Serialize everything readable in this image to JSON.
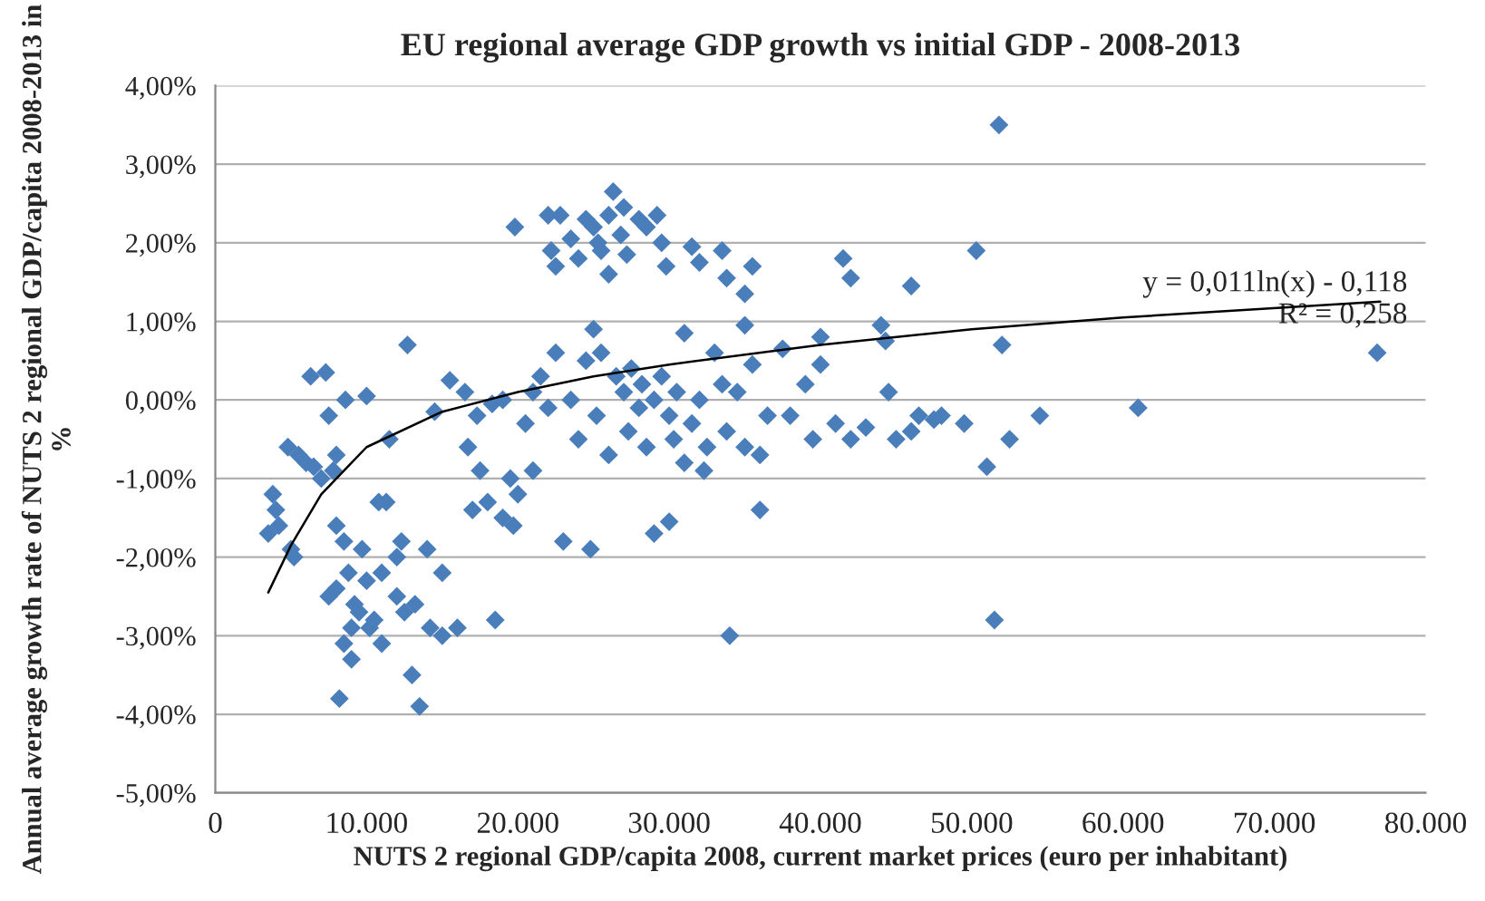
{
  "chart_data": {
    "type": "scatter",
    "title": "EU regional average GDP growth vs initial GDP - 2008-2013",
    "xlabel": "NUTS 2 regional GDP/capita 2008, current market prices (euro per inhabitant)",
    "ylabel": "Annual average growth rate of NUTS 2 regional GDP/capita 2008-2013 in %",
    "annotations": [
      "y = 0,011ln(x) - 0,118",
      "R² = 0,258"
    ],
    "marker": "diamond",
    "grid": "y",
    "xlim": [
      0,
      80000
    ],
    "xticks": [
      {
        "value": 0,
        "label": "0"
      },
      {
        "value": 10000,
        "label": "10.000"
      },
      {
        "value": 20000,
        "label": "20.000"
      },
      {
        "value": 30000,
        "label": "30.000"
      },
      {
        "value": 40000,
        "label": "40.000"
      },
      {
        "value": 50000,
        "label": "50.000"
      },
      {
        "value": 60000,
        "label": "60.000"
      },
      {
        "value": 70000,
        "label": "70.000"
      },
      {
        "value": 80000,
        "label": "80.000"
      }
    ],
    "ylim": [
      -5,
      4
    ],
    "yticks": [
      {
        "value": -5,
        "label": "-5,00%"
      },
      {
        "value": -4,
        "label": "-4,00%"
      },
      {
        "value": -3,
        "label": "-3,00%"
      },
      {
        "value": -2,
        "label": "-2,00%"
      },
      {
        "value": -1,
        "label": "-1,00%"
      },
      {
        "value": 0,
        "label": "0,00%"
      },
      {
        "value": 1,
        "label": "1,00%"
      },
      {
        "value": 2,
        "label": "2,00%"
      },
      {
        "value": 3,
        "label": "3,00%"
      },
      {
        "value": 4,
        "label": "4,00%"
      }
    ],
    "series": [
      {
        "color": "#4a7ebb",
        "x": [
          3500,
          3800,
          4000,
          4200,
          4800,
          5000,
          5200,
          5500,
          6000,
          6300,
          6500,
          7000,
          7300,
          7500,
          7500,
          7800,
          8000,
          8000,
          8000,
          8200,
          8500,
          8500,
          8600,
          8800,
          9000,
          9000,
          9200,
          9500,
          9700,
          10000,
          10000,
          10200,
          10500,
          10800,
          11000,
          11000,
          11300,
          11500,
          12000,
          12000,
          12300,
          12500,
          12700,
          13000,
          13200,
          13500,
          14000,
          14200,
          14500,
          15000,
          15000,
          15500,
          16000,
          16500,
          16700,
          17000,
          17300,
          17500,
          18000,
          18300,
          18500,
          19000,
          19000,
          19500,
          19700,
          20000,
          19800,
          20500,
          21000,
          21000,
          22000,
          22200,
          22500,
          22800,
          23500,
          24000,
          24500,
          25000,
          25300,
          25500,
          26000,
          26000,
          26300,
          26800,
          27000,
          27200,
          28000,
          28500,
          29200,
          29500,
          29800,
          31500,
          32000,
          33500,
          33800,
          35000,
          35500,
          41500,
          42000,
          46000,
          50300,
          51800,
          21500,
          22000,
          22500,
          23000,
          23500,
          24000,
          24500,
          24800,
          25000,
          25200,
          25500,
          26000,
          26500,
          27000,
          27300,
          27500,
          28000,
          28200,
          28500,
          29000,
          29000,
          29500,
          30000,
          30000,
          30300,
          30500,
          31000,
          31000,
          31500,
          32000,
          32300,
          32500,
          33000,
          33500,
          33800,
          34000,
          34500,
          35000,
          35000,
          35500,
          36000,
          36000,
          36500,
          37500,
          38000,
          39000,
          39500,
          40000,
          40000,
          41000,
          42000,
          43000,
          44000,
          44300,
          44500,
          45000,
          46000,
          46500,
          47500,
          48000,
          49500,
          51000,
          51500,
          52000,
          52500,
          54500,
          61000,
          76800
        ],
        "values": [
          -1.7,
          -1.2,
          -1.4,
          -1.6,
          -0.6,
          -1.9,
          -2.0,
          -0.7,
          -0.8,
          0.3,
          -0.85,
          -1.0,
          0.35,
          -0.2,
          -2.5,
          -0.9,
          -1.6,
          -0.7,
          -2.4,
          -3.8,
          -1.8,
          -3.1,
          0.0,
          -2.2,
          -2.9,
          -3.3,
          -2.6,
          -2.7,
          -1.9,
          -2.3,
          0.05,
          -2.9,
          -2.8,
          -1.3,
          -2.2,
          -3.1,
          -1.3,
          -0.5,
          -2.5,
          -2.0,
          -1.8,
          -2.7,
          0.7,
          -3.5,
          -2.6,
          -3.9,
          -1.9,
          -2.9,
          -0.15,
          -2.2,
          -3.0,
          0.25,
          -2.9,
          0.1,
          -0.6,
          -1.4,
          -0.2,
          -0.9,
          -1.3,
          -0.05,
          -2.8,
          -1.5,
          0.0,
          -1.0,
          -1.6,
          -1.2,
          2.2,
          -0.3,
          -0.9,
          0.1,
          2.35,
          1.9,
          1.7,
          2.35,
          2.05,
          1.8,
          2.3,
          2.2,
          2.0,
          1.9,
          2.35,
          1.6,
          2.65,
          2.1,
          2.45,
          1.85,
          2.3,
          2.2,
          2.35,
          2.0,
          1.7,
          1.95,
          1.75,
          1.9,
          1.55,
          1.35,
          1.7,
          1.8,
          1.55,
          1.45,
          1.9,
          3.5,
          0.3,
          -0.1,
          0.6,
          -1.8,
          0.0,
          -0.5,
          0.5,
          -1.9,
          0.9,
          -0.2,
          0.6,
          -0.7,
          0.3,
          0.1,
          -0.4,
          0.4,
          -0.1,
          0.2,
          -0.6,
          0.0,
          -1.7,
          0.3,
          -0.2,
          -1.55,
          -0.5,
          0.1,
          -0.8,
          0.85,
          -0.3,
          0.0,
          -0.9,
          -0.6,
          0.6,
          0.2,
          -0.4,
          -3.0,
          0.1,
          -0.6,
          0.95,
          0.45,
          -0.7,
          -1.4,
          -0.2,
          0.65,
          -0.2,
          0.2,
          -0.5,
          0.45,
          0.8,
          -0.3,
          -0.5,
          -0.35,
          0.95,
          0.75,
          0.1,
          -0.5,
          -0.4,
          -0.2,
          -0.25,
          -0.2,
          -0.3,
          -0.85,
          -2.8,
          0.7,
          -0.5,
          -0.2,
          -0.1,
          0.6
        ]
      },
      {
        "type": "line",
        "color": "#000000",
        "marker": "none",
        "x": [
          3500,
          5000,
          7000,
          10000,
          15000,
          20000,
          25000,
          30000,
          40000,
          50000,
          60000,
          77000
        ],
        "values": [
          -2.45,
          -1.85,
          -1.2,
          -0.6,
          -0.15,
          0.1,
          0.3,
          0.45,
          0.7,
          0.9,
          1.05,
          1.25
        ]
      }
    ]
  }
}
